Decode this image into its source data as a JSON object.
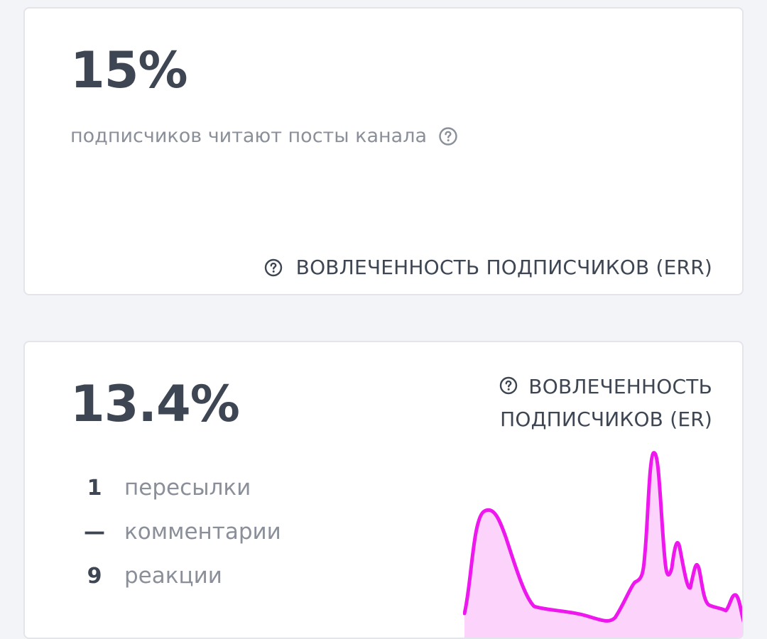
{
  "err_card": {
    "value": "15%",
    "description": "подписчиков читают посты канала",
    "caption": "ВОВЛЕЧЕННОСТЬ ПОДПИСЧИКОВ (ERR)",
    "icon": "question-circle-icon"
  },
  "er_card": {
    "value": "13.4%",
    "caption": "ВОВЛЕЧЕННОСТЬ ПОДПИСЧИКОВ (ER)",
    "icon": "question-circle-icon",
    "stats": [
      {
        "value": "1",
        "label": "пересылки"
      },
      {
        "value": "—",
        "label": "комментарии"
      },
      {
        "value": "9",
        "label": "реакции"
      }
    ],
    "sparkline_colors": {
      "line": "#ee17ee",
      "fill": "#fbd3fb"
    }
  }
}
